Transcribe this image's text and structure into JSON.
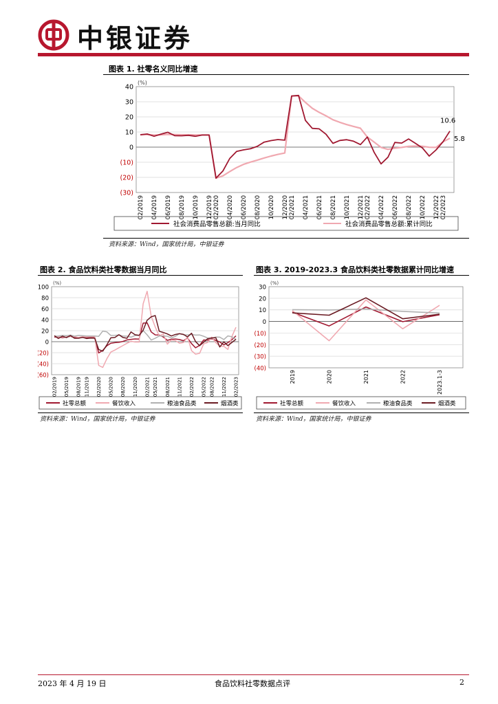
{
  "header": {
    "brand": "中银证券",
    "brand_color": "#b7172e"
  },
  "figures": [
    {
      "title": "图表 1. 社零名义同比增速",
      "source": "资料来源：Wind，国家统计局，中银证券"
    },
    {
      "title": "图表 2. 食品饮料类社零数据当月同比",
      "source": "资料来源：Wind，国家统计局，中银证券"
    },
    {
      "title": "图表 3. 2019-2023.3 食品饮料类社零数据累计同比增速",
      "source": "资料来源：Wind，国家统计局，中银证券"
    }
  ],
  "footer": {
    "date": "2023 年 4 月 19 日",
    "title": "食品饮料社零数据点评",
    "page": "2"
  },
  "chart_data": [
    {
      "type": "line",
      "title": "图表 1. 社零名义同比增速",
      "unit": "(%)",
      "ylim": [
        -30,
        40
      ],
      "yticks": [
        "40",
        "30",
        "20",
        "10",
        "0",
        "(10)",
        "(20)",
        "(30)"
      ],
      "xticks": [
        "02/2019",
        "04/2019",
        "06/2019",
        "08/2019",
        "10/2019",
        "12/2019",
        "02/2020",
        "04/2020",
        "06/2020",
        "08/2020",
        "10/2020",
        "12/2020",
        "02/2021",
        "04/2021",
        "06/2021",
        "08/2021",
        "10/2021",
        "12/2021",
        "02/2022",
        "04/2022",
        "06/2022",
        "08/2022",
        "10/2022",
        "12/2022",
        "02/2023"
      ],
      "x_months": [
        "02/2019",
        "03/2019",
        "04/2019",
        "05/2019",
        "06/2019",
        "07/2019",
        "08/2019",
        "09/2019",
        "10/2019",
        "11/2019",
        "12/2019",
        "02/2020",
        "03/2020",
        "04/2020",
        "05/2020",
        "06/2020",
        "07/2020",
        "08/2020",
        "09/2020",
        "10/2020",
        "11/2020",
        "12/2020",
        "02/2021",
        "03/2021",
        "04/2021",
        "05/2021",
        "06/2021",
        "07/2021",
        "08/2021",
        "09/2021",
        "10/2021",
        "11/2021",
        "12/2021",
        "02/2022",
        "03/2022",
        "04/2022",
        "05/2022",
        "06/2022",
        "07/2022",
        "08/2022",
        "09/2022",
        "10/2022",
        "11/2022",
        "12/2022",
        "02/2023",
        "03/2023"
      ],
      "series": [
        {
          "name": "社会消费品零售总额:当月同比",
          "color": "#a01830",
          "values": [
            8.2,
            8.7,
            7.2,
            8.6,
            9.8,
            7.6,
            7.5,
            7.8,
            7.2,
            8.0,
            8.0,
            -20.5,
            -15.8,
            -7.5,
            -2.8,
            -1.8,
            -1.1,
            0.5,
            3.3,
            4.3,
            5.0,
            4.6,
            33.8,
            34.2,
            17.7,
            12.4,
            12.1,
            8.5,
            2.5,
            4.4,
            4.9,
            3.9,
            1.7,
            6.7,
            -3.5,
            -11.1,
            -6.7,
            3.1,
            2.7,
            5.4,
            2.5,
            -0.5,
            -5.9,
            -1.8,
            3.5,
            10.6
          ]
        },
        {
          "name": "社会消费品零售总额:累计同比",
          "color": "#f0a8b0",
          "values": [
            8.2,
            8.3,
            8.0,
            8.1,
            8.4,
            8.3,
            8.2,
            8.2,
            8.1,
            8.0,
            8.0,
            -20.5,
            -19.0,
            -16.2,
            -13.5,
            -11.4,
            -9.9,
            -8.6,
            -7.2,
            -5.9,
            -4.8,
            -3.9,
            33.8,
            33.9,
            29.6,
            25.7,
            23.0,
            20.7,
            18.1,
            16.4,
            14.9,
            13.7,
            12.5,
            6.7,
            3.3,
            -0.2,
            -1.5,
            -0.7,
            -0.2,
            0.5,
            0.7,
            0.6,
            -0.1,
            -0.2,
            3.5,
            5.8
          ]
        }
      ],
      "annotations": [
        "10.6",
        "5.8"
      ]
    },
    {
      "type": "line",
      "title": "图表 2. 食品饮料类社零数据当月同比",
      "unit": "(%)",
      "ylim": [
        -60,
        100
      ],
      "yticks": [
        "100",
        "80",
        "60",
        "40",
        "20",
        "0",
        "(20)",
        "(40)",
        "(60)"
      ],
      "xticks": [
        "02/2019",
        "05/2019",
        "08/2019",
        "11/2019",
        "02/2020",
        "05/2020",
        "08/2020",
        "11/2020",
        "02/2021",
        "05/2021",
        "08/2021",
        "11/2021",
        "02/2022",
        "05/2022",
        "08/2022",
        "11/2022",
        "02/2023"
      ],
      "series": [
        {
          "name": "社零总额",
          "color": "#a01830",
          "values": [
            8.2,
            8.7,
            7.2,
            8.6,
            9.8,
            7.6,
            7.5,
            7.8,
            7.2,
            8.0,
            8.0,
            -20.5,
            -15.8,
            -7.5,
            -2.8,
            -1.8,
            -1.1,
            0.5,
            3.3,
            4.3,
            5.0,
            4.6,
            33.8,
            34.2,
            17.7,
            12.4,
            12.1,
            8.5,
            2.5,
            4.4,
            4.9,
            3.9,
            1.7,
            6.7,
            -3.5,
            -11.1,
            -6.7,
            3.1,
            2.7,
            5.4,
            2.5,
            -0.5,
            -5.9,
            -1.8,
            3.5,
            10.6
          ]
        },
        {
          "name": "餐饮收入",
          "color": "#f0a8b0",
          "values": [
            9.7,
            9.0,
            8.5,
            8.5,
            10.0,
            9.1,
            7.6,
            9.2,
            8.6,
            9.0,
            9.0,
            -43.1,
            -46.8,
            -31.1,
            -18.9,
            -15.2,
            -11.0,
            -7.0,
            -2.9,
            0.8,
            -0.6,
            -0.6,
            68.9,
            91.6,
            46.4,
            26.6,
            10.2,
            14.3,
            -4.5,
            3.1,
            2.0,
            -2.7,
            -1.6,
            8.9,
            -16.4,
            -22.7,
            -21.1,
            -4.0,
            -1.5,
            8.4,
            -1.7,
            -8.1,
            -8.4,
            -14.1,
            9.2,
            26.3
          ]
        },
        {
          "name": "粮油食品类",
          "color": "#b0b0b0",
          "values": [
            10.1,
            10.2,
            11.4,
            11.0,
            12.0,
            10.0,
            11.4,
            10.9,
            10.3,
            10.4,
            10.4,
            9.7,
            19.3,
            17.9,
            11.4,
            11.5,
            12.2,
            10.2,
            10.0,
            8.2,
            11.3,
            11.4,
            20.1,
            12.5,
            3.0,
            6.2,
            10.4,
            10.2,
            10.0,
            6.6,
            9.8,
            14.5,
            12.6,
            12.2,
            13.1,
            12.0,
            12.3,
            9.9,
            6.6,
            6.3,
            8.5,
            8.3,
            3.9,
            10.5,
            9.0,
            4.2
          ]
        },
        {
          "name": "烟酒类",
          "color": "#6a1a22",
          "values": [
            10.9,
            5.8,
            10.0,
            7.4,
            11.1,
            6.3,
            6.2,
            7.9,
            5.8,
            6.5,
            6.2,
            -14.2,
            -17.2,
            -5.9,
            7.0,
            7.6,
            12.6,
            7.6,
            6.2,
            17.7,
            12.6,
            11.5,
            20.7,
            39.0,
            45.3,
            47.5,
            19.0,
            16.8,
            14.1,
            10.4,
            13.1,
            14.6,
            13.3,
            8.6,
            15.4,
            0.3,
            -7.3,
            -1.0,
            5.5,
            6.9,
            7.3,
            -9.6,
            -0.2,
            -7.1,
            -1.4,
            4.5
          ]
        }
      ]
    },
    {
      "type": "line",
      "title": "图表 3. 2019-2023.3 食品饮料类社零数据累计同比增速",
      "unit": "(%)",
      "ylim": [
        -40,
        30
      ],
      "yticks": [
        "30",
        "20",
        "10",
        "0",
        "(10)",
        "(20)",
        "(30)",
        "(40)"
      ],
      "categories": [
        "2019",
        "2020",
        "2021",
        "2022",
        "2023.1-3"
      ],
      "series": [
        {
          "name": "社零总额",
          "color": "#a01830",
          "values": [
            8.0,
            -3.9,
            12.5,
            -0.2,
            5.8
          ]
        },
        {
          "name": "餐饮收入",
          "color": "#f0a8b0",
          "values": [
            9.4,
            -16.6,
            18.6,
            -6.3,
            13.9
          ]
        },
        {
          "name": "粮油食品类",
          "color": "#b0b0b0",
          "values": [
            10.2,
            9.9,
            10.8,
            8.7,
            7.3
          ]
        },
        {
          "name": "烟酒类",
          "color": "#6a1a22",
          "values": [
            7.4,
            5.4,
            20.4,
            2.3,
            6.3
          ]
        }
      ]
    }
  ]
}
